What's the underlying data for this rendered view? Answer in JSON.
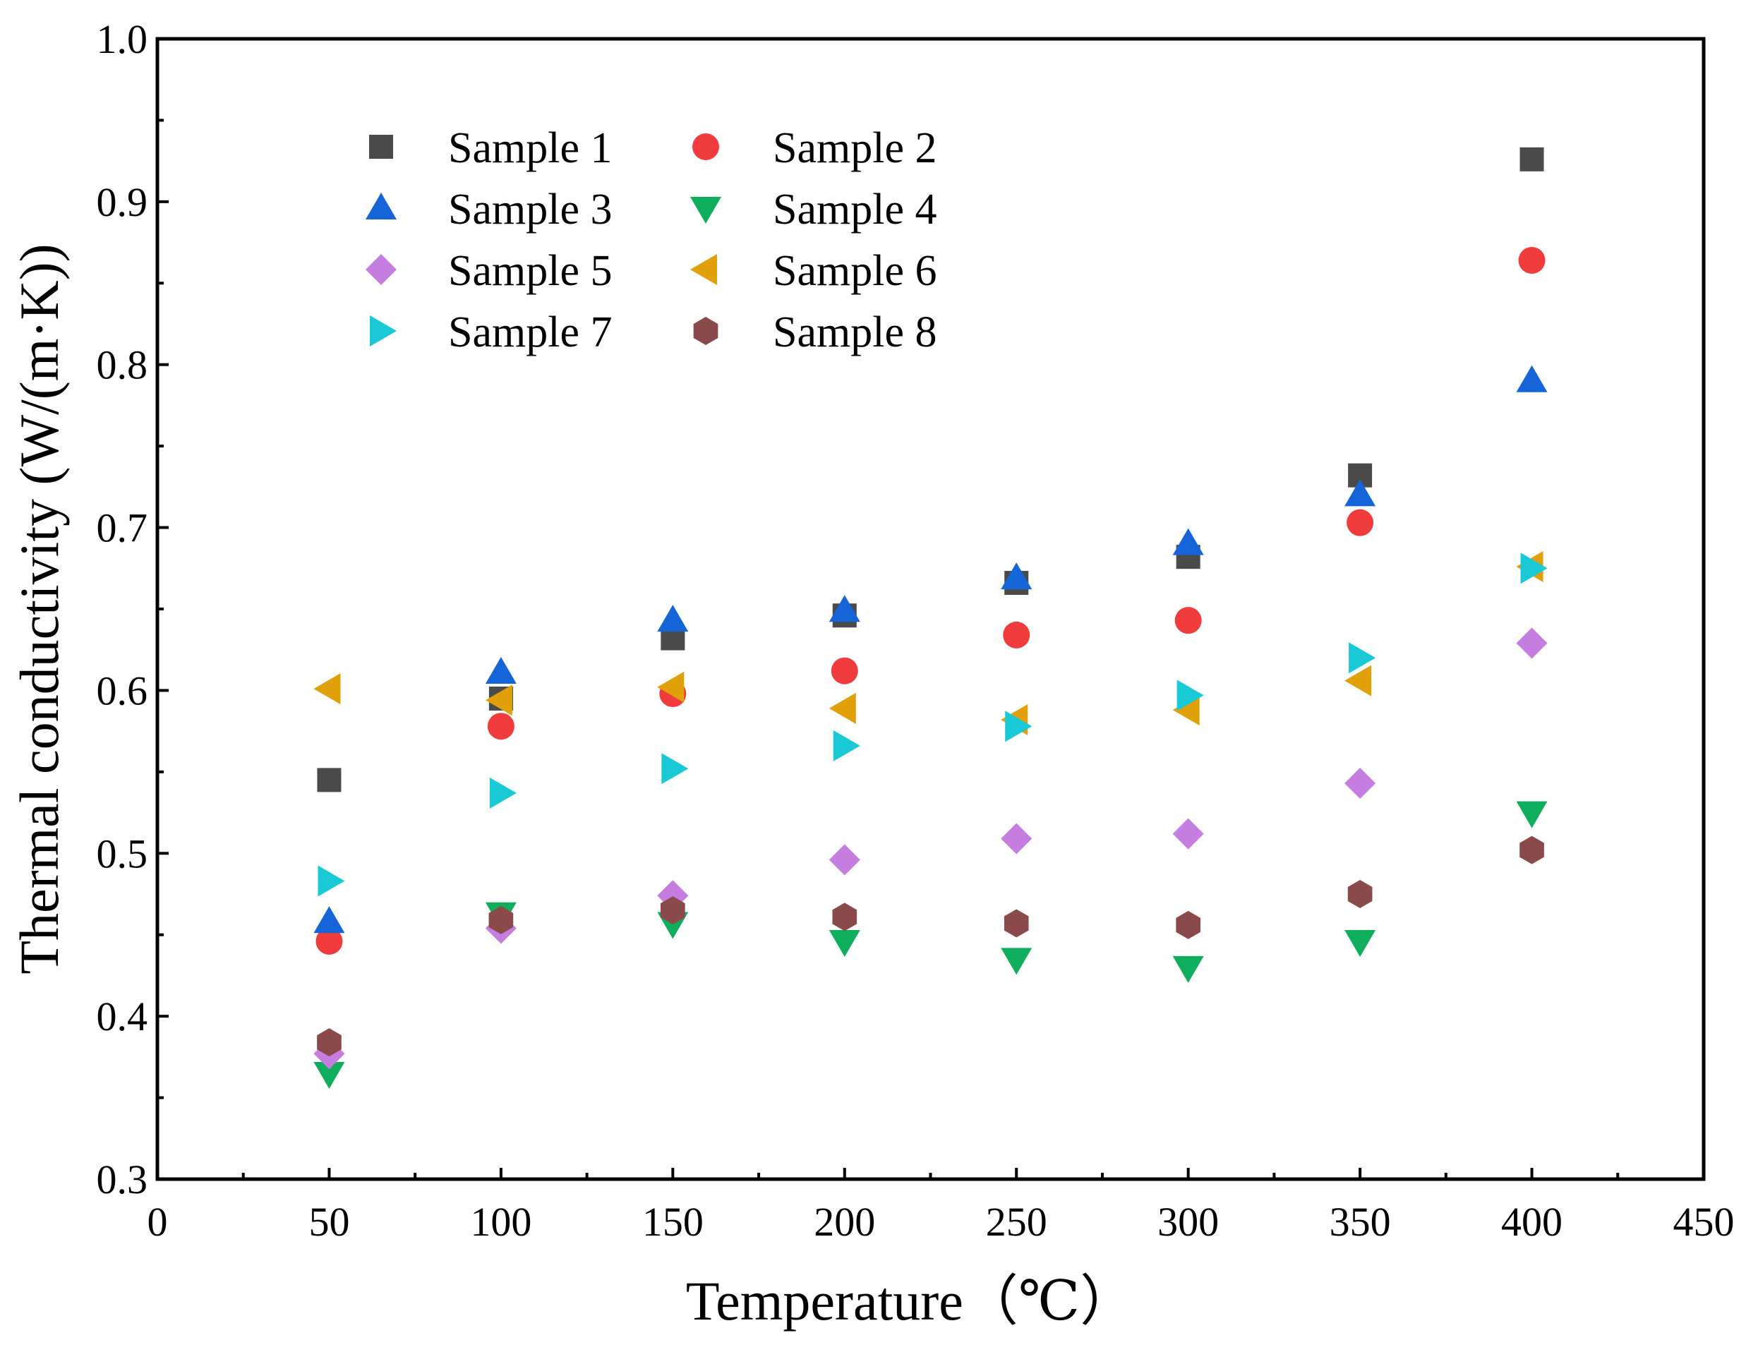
{
  "chart_data": {
    "type": "scatter",
    "title": "",
    "xlabel": "Temperature（℃）",
    "ylabel": "Thermal conductivity (W/(m·K))",
    "xlim": [
      0,
      450
    ],
    "ylim": [
      0.3,
      1.0
    ],
    "x_ticks": [
      "0",
      "50",
      "100",
      "150",
      "200",
      "250",
      "300",
      "350",
      "400",
      "450"
    ],
    "y_ticks": [
      "0.3",
      "0.4",
      "0.5",
      "0.6",
      "0.7",
      "0.8",
      "0.9",
      "1.0"
    ],
    "grid": false,
    "legend_position": "top-left",
    "x": [
      50,
      100,
      150,
      200,
      250,
      300,
      350,
      400
    ],
    "series": [
      {
        "name": "Sample 1",
        "marker": "square",
        "color": "#4a4a4a",
        "values": [
          0.545,
          0.595,
          0.632,
          0.646,
          0.666,
          0.682,
          0.732,
          0.926
        ]
      },
      {
        "name": "Sample 2",
        "marker": "circle",
        "color": "#f03c3c",
        "values": [
          0.446,
          0.578,
          0.598,
          0.612,
          0.634,
          0.643,
          0.703,
          0.864
        ]
      },
      {
        "name": "Sample 3",
        "marker": "triangle-up",
        "color": "#1565d8",
        "values": [
          0.458,
          0.611,
          0.643,
          0.649,
          0.669,
          0.69,
          0.72,
          0.79
        ]
      },
      {
        "name": "Sample 4",
        "marker": "triangle-down",
        "color": "#0fae5c",
        "values": [
          0.365,
          0.463,
          0.457,
          0.446,
          0.435,
          0.43,
          0.446,
          0.525
        ]
      },
      {
        "name": "Sample 5",
        "marker": "diamond",
        "color": "#c57ee0",
        "values": [
          0.377,
          0.454,
          0.474,
          0.496,
          0.509,
          0.512,
          0.543,
          0.629
        ]
      },
      {
        "name": "Sample 6",
        "marker": "triangle-left",
        "color": "#e0a00a",
        "values": [
          0.601,
          0.594,
          0.602,
          0.589,
          0.582,
          0.588,
          0.606,
          0.676
        ]
      },
      {
        "name": "Sample 7",
        "marker": "triangle-right",
        "color": "#19c9d6",
        "values": [
          0.483,
          0.537,
          0.552,
          0.566,
          0.578,
          0.597,
          0.62,
          0.675
        ]
      },
      {
        "name": "Sample 8",
        "marker": "hexagon",
        "color": "#8b4a4a",
        "values": [
          0.384,
          0.459,
          0.465,
          0.461,
          0.457,
          0.456,
          0.475,
          0.502
        ]
      }
    ]
  }
}
